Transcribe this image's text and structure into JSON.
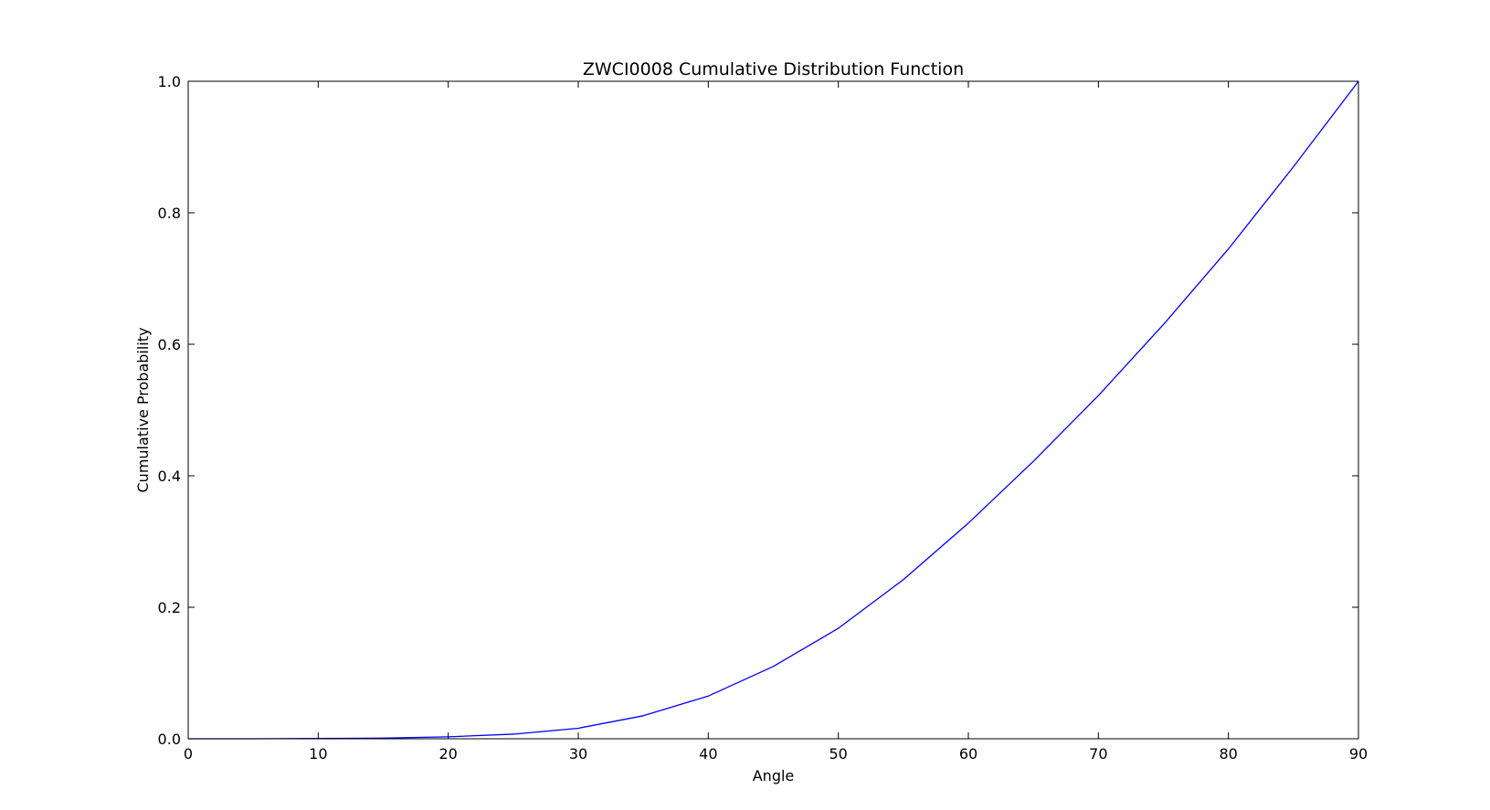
{
  "chart_data": {
    "type": "line",
    "title": "ZWCI0008 Cumulative Distribution Function",
    "xlabel": "Angle",
    "ylabel": "Cumulative Probability",
    "xlim": [
      0,
      90
    ],
    "ylim": [
      0,
      1.0
    ],
    "x_ticks": [
      0,
      10,
      20,
      30,
      40,
      50,
      60,
      70,
      80,
      90
    ],
    "x_tick_labels": [
      "0",
      "10",
      "20",
      "30",
      "40",
      "50",
      "60",
      "70",
      "80",
      "90"
    ],
    "y_ticks": [
      0,
      0.2,
      0.4,
      0.6,
      0.8,
      1.0
    ],
    "y_tick_labels": [
      "0.0",
      "0.2",
      "0.4",
      "0.6",
      "0.8",
      "1.0"
    ],
    "grid": false,
    "legend": "none",
    "series": [
      {
        "color": "#0000ff",
        "x": [
          0,
          5,
          10,
          15,
          20,
          25,
          30,
          35,
          40,
          45,
          50,
          55,
          60,
          65,
          70,
          75,
          80,
          85,
          90
        ],
        "y": [
          0.0,
          0.0,
          0.0005,
          0.001,
          0.003,
          0.007,
          0.016,
          0.035,
          0.065,
          0.11,
          0.168,
          0.242,
          0.328,
          0.422,
          0.522,
          0.63,
          0.745,
          0.87,
          1.0
        ]
      }
    ]
  }
}
